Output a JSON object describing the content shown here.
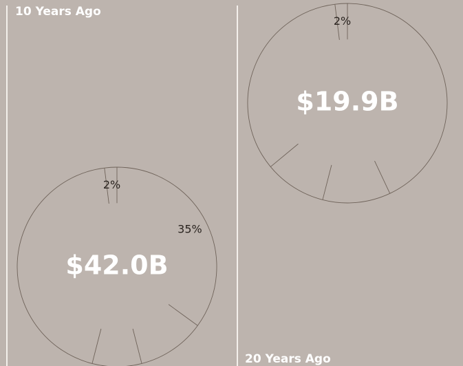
{
  "chart_data": [
    {
      "type": "pie",
      "title": "10 Years Ago",
      "total": "$42.0B",
      "values": [
        35,
        11,
        8,
        44,
        2
      ],
      "value_labels": [
        "35%",
        null,
        null,
        null,
        "2%"
      ]
    },
    {
      "type": "pie",
      "title": "20 Years Ago",
      "total": "$19.9B",
      "values": [
        43,
        11,
        10,
        34,
        2
      ],
      "value_labels": [
        null,
        null,
        null,
        null,
        "2%"
      ]
    }
  ]
}
